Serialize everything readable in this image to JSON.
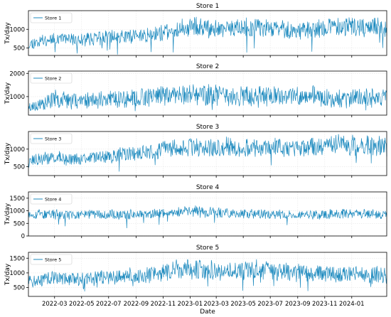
{
  "chart_data": {
    "type": "line",
    "shared_x": {
      "label": "Date",
      "range": [
        "2022-01-01",
        "2024-03-20"
      ],
      "tick_labels": [
        "2022-03",
        "2022-05",
        "2022-07",
        "2022-09",
        "2022-11",
        "2023-01",
        "2023-03",
        "2023-05",
        "2023-07",
        "2023-09",
        "2023-11",
        "2024-01"
      ]
    },
    "line_color": "#1f8bbf",
    "grid": true,
    "legend_position": "upper-left",
    "panels": [
      {
        "title": "Store 1",
        "ylabel": "Tx/day",
        "legend": "Store 1",
        "ylim": [
          300,
          1500
        ],
        "yticks": [
          500,
          1000
        ],
        "series": {
          "name": "Store 1",
          "points": [
            [
              "2022-01-01",
              600
            ],
            [
              "2022-02-01",
              700
            ],
            [
              "2022-03-01",
              760
            ],
            [
              "2022-04-01",
              730
            ],
            [
              "2022-05-01",
              710
            ],
            [
              "2022-06-01",
              760
            ],
            [
              "2022-07-01",
              780
            ],
            [
              "2022-08-01",
              800
            ],
            [
              "2022-09-01",
              830
            ],
            [
              "2022-10-01",
              850
            ],
            [
              "2022-11-01",
              900
            ],
            [
              "2022-12-01",
              1000
            ],
            [
              "2023-01-01",
              1080
            ],
            [
              "2023-02-01",
              1040
            ],
            [
              "2023-03-01",
              1020
            ],
            [
              "2023-04-01",
              1040
            ],
            [
              "2023-05-01",
              1060
            ],
            [
              "2023-06-01",
              1050
            ],
            [
              "2023-07-01",
              1020
            ],
            [
              "2023-08-01",
              990
            ],
            [
              "2023-09-01",
              960
            ],
            [
              "2023-10-01",
              980
            ],
            [
              "2023-11-01",
              1040
            ],
            [
              "2023-12-01",
              1060
            ],
            [
              "2024-01-01",
              1050
            ],
            [
              "2024-02-01",
              1080
            ],
            [
              "2024-03-20",
              1050
            ]
          ],
          "noise": 0.16,
          "seed": 11
        }
      },
      {
        "title": "Store 2",
        "ylabel": "Tx/day",
        "legend": "Store 2",
        "ylim": [
          200,
          2100
        ],
        "yticks": [
          1000,
          2000
        ],
        "series": {
          "name": "Store 2",
          "points": [
            [
              "2022-01-01",
              550
            ],
            [
              "2022-02-01",
              650
            ],
            [
              "2022-03-01",
              900
            ],
            [
              "2022-04-01",
              850
            ],
            [
              "2022-05-01",
              820
            ],
            [
              "2022-06-01",
              880
            ],
            [
              "2022-07-01",
              900
            ],
            [
              "2022-08-01",
              920
            ],
            [
              "2022-09-01",
              950
            ],
            [
              "2022-10-01",
              1000
            ],
            [
              "2022-11-01",
              1050
            ],
            [
              "2022-12-01",
              1080
            ],
            [
              "2023-01-01",
              1100
            ],
            [
              "2023-02-01",
              1080
            ],
            [
              "2023-03-01",
              1060
            ],
            [
              "2023-04-01",
              1080
            ],
            [
              "2023-05-01",
              1050
            ],
            [
              "2023-06-01",
              1020
            ],
            [
              "2023-07-01",
              1000
            ],
            [
              "2023-08-01",
              980
            ],
            [
              "2023-09-01",
              1000
            ],
            [
              "2023-10-01",
              1050
            ],
            [
              "2023-11-01",
              1020
            ],
            [
              "2023-12-01",
              900
            ],
            [
              "2024-01-01",
              950
            ],
            [
              "2024-02-01",
              980
            ],
            [
              "2024-03-20",
              960
            ]
          ],
          "noise": 0.28,
          "seed": 23
        }
      },
      {
        "title": "Store 3",
        "ylabel": "Tx/day",
        "legend": "Store 3",
        "ylim": [
          250,
          1500
        ],
        "yticks": [
          500,
          1000
        ],
        "series": {
          "name": "Store 3",
          "points": [
            [
              "2022-01-01",
              650
            ],
            [
              "2022-02-01",
              720
            ],
            [
              "2022-03-01",
              760
            ],
            [
              "2022-04-01",
              720
            ],
            [
              "2022-05-01",
              700
            ],
            [
              "2022-06-01",
              760
            ],
            [
              "2022-07-01",
              800
            ],
            [
              "2022-08-01",
              830
            ],
            [
              "2022-09-01",
              860
            ],
            [
              "2022-10-01",
              900
            ],
            [
              "2022-11-01",
              980
            ],
            [
              "2022-12-01",
              1050
            ],
            [
              "2023-01-01",
              1060
            ],
            [
              "2023-02-01",
              1020
            ],
            [
              "2023-03-01",
              1050
            ],
            [
              "2023-04-01",
              1080
            ],
            [
              "2023-05-01",
              1070
            ],
            [
              "2023-06-01",
              1060
            ],
            [
              "2023-07-01",
              1050
            ],
            [
              "2023-08-01",
              1030
            ],
            [
              "2023-09-01",
              1040
            ],
            [
              "2023-10-01",
              1060
            ],
            [
              "2023-11-01",
              1100
            ],
            [
              "2023-12-01",
              1120
            ],
            [
              "2024-01-01",
              1100
            ],
            [
              "2024-02-01",
              1110
            ],
            [
              "2024-03-20",
              1080
            ]
          ],
          "noise": 0.17,
          "seed": 37
        }
      },
      {
        "title": "Store 4",
        "ylabel": "Tx/day",
        "legend": "Store 4",
        "ylim": [
          0,
          1750
        ],
        "yticks": [
          0,
          500,
          1000,
          1500
        ],
        "series": {
          "name": "Store 4",
          "points": [
            [
              "2022-01-01",
              880
            ],
            [
              "2022-02-01",
              860
            ],
            [
              "2022-03-01",
              850
            ],
            [
              "2022-04-01",
              840
            ],
            [
              "2022-05-01",
              830
            ],
            [
              "2022-06-01",
              850
            ],
            [
              "2022-07-01",
              860
            ],
            [
              "2022-08-01",
              850
            ],
            [
              "2022-09-01",
              860
            ],
            [
              "2022-10-01",
              870
            ],
            [
              "2022-11-01",
              900
            ],
            [
              "2022-12-01",
              950
            ],
            [
              "2023-01-01",
              980
            ],
            [
              "2023-02-01",
              950
            ],
            [
              "2023-03-01",
              920
            ],
            [
              "2023-04-01",
              900
            ],
            [
              "2023-05-01",
              880
            ],
            [
              "2023-06-01",
              870
            ],
            [
              "2023-07-01",
              860
            ],
            [
              "2023-08-01",
              850
            ],
            [
              "2023-09-01",
              840
            ],
            [
              "2023-10-01",
              850
            ],
            [
              "2023-11-01",
              870
            ],
            [
              "2023-12-01",
              880
            ],
            [
              "2024-01-01",
              900
            ],
            [
              "2024-02-01",
              880
            ],
            [
              "2024-03-20",
              860
            ]
          ],
          "noise": 0.15,
          "seed": 53
        }
      },
      {
        "title": "Store 5",
        "ylabel": "Tx/day",
        "legend": "Store 5",
        "ylim": [
          200,
          1700
        ],
        "yticks": [
          500,
          1000,
          1500
        ],
        "series": {
          "name": "Store 5",
          "points": [
            [
              "2022-01-01",
              700
            ],
            [
              "2022-02-01",
              780
            ],
            [
              "2022-03-01",
              820
            ],
            [
              "2022-04-01",
              800
            ],
            [
              "2022-05-01",
              780
            ],
            [
              "2022-06-01",
              820
            ],
            [
              "2022-07-01",
              850
            ],
            [
              "2022-08-01",
              870
            ],
            [
              "2022-09-01",
              900
            ],
            [
              "2022-10-01",
              930
            ],
            [
              "2022-11-01",
              980
            ],
            [
              "2022-12-01",
              1100
            ],
            [
              "2023-01-01",
              1150
            ],
            [
              "2023-02-01",
              1120
            ],
            [
              "2023-03-01",
              1080
            ],
            [
              "2023-04-01",
              1100
            ],
            [
              "2023-05-01",
              1120
            ],
            [
              "2023-06-01",
              1100
            ],
            [
              "2023-07-01",
              1060
            ],
            [
              "2023-08-01",
              1020
            ],
            [
              "2023-09-01",
              1000
            ],
            [
              "2023-10-01",
              980
            ],
            [
              "2023-11-01",
              960
            ],
            [
              "2023-12-01",
              950
            ],
            [
              "2024-01-01",
              960
            ],
            [
              "2024-02-01",
              940
            ],
            [
              "2024-03-20",
              920
            ]
          ],
          "noise": 0.2,
          "seed": 71
        }
      }
    ]
  }
}
